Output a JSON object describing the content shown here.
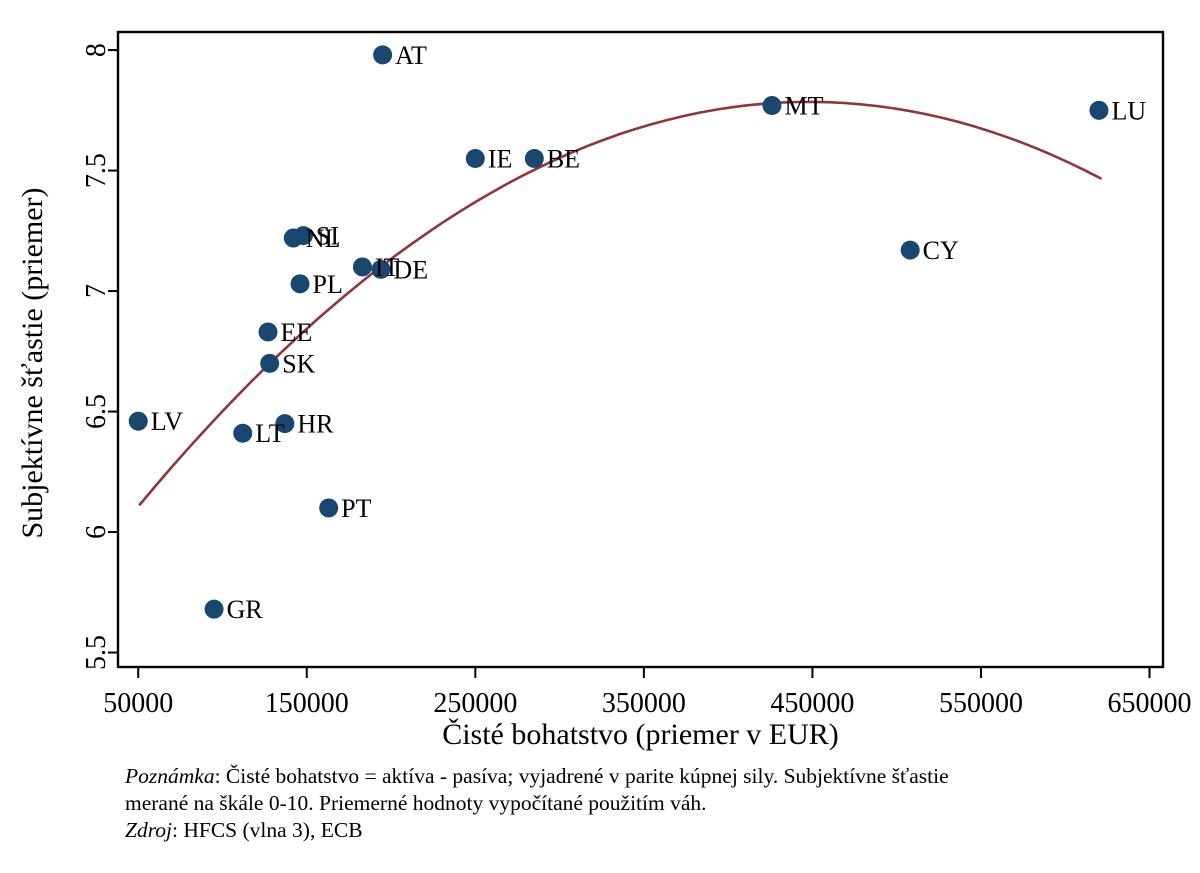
{
  "chart_data": {
    "type": "scatter",
    "xlabel": "Čisté bohatstvo (priemer v EUR)",
    "ylabel": "Subjektívne šťastie (priemer)",
    "xlim": [
      38000,
      658000
    ],
    "ylim": [
      5.44,
      8.075
    ],
    "xticks": [
      50000,
      150000,
      250000,
      350000,
      450000,
      550000,
      650000
    ],
    "yticks": [
      5.5,
      6,
      6.5,
      7,
      7.5,
      8
    ],
    "grid": false,
    "point_color": "#1a476f",
    "axis_color": "#000000",
    "points": [
      {
        "label": "LV",
        "x": 50000,
        "y": 6.46
      },
      {
        "label": "GR",
        "x": 95000,
        "y": 5.68
      },
      {
        "label": "LT",
        "x": 112000,
        "y": 6.41
      },
      {
        "label": "EE",
        "x": 127000,
        "y": 6.83
      },
      {
        "label": "SK",
        "x": 128000,
        "y": 6.7
      },
      {
        "label": "HR",
        "x": 137000,
        "y": 6.45
      },
      {
        "label": "NL",
        "x": 142000,
        "y": 7.22
      },
      {
        "label": "PL",
        "x": 146000,
        "y": 7.03
      },
      {
        "label": "SI",
        "x": 148000,
        "y": 7.23
      },
      {
        "label": "PT",
        "x": 163000,
        "y": 6.1
      },
      {
        "label": "IT",
        "x": 183000,
        "y": 7.1
      },
      {
        "label": "DE",
        "x": 194000,
        "y": 7.09
      },
      {
        "label": "AT",
        "x": 195000,
        "y": 7.98
      },
      {
        "label": "IE",
        "x": 250000,
        "y": 7.55
      },
      {
        "label": "BE",
        "x": 285000,
        "y": 7.55
      },
      {
        "label": "MT",
        "x": 426000,
        "y": 7.77
      },
      {
        "label": "CY",
        "x": 508000,
        "y": 7.17
      },
      {
        "label": "LU",
        "x": 620000,
        "y": 7.75
      }
    ],
    "fit_curve": {
      "type": "quadratic",
      "peak_x": 448000,
      "peak_y": 7.785,
      "a": -1.06e-11,
      "x_start": 51000,
      "x_end": 621000,
      "color": "#90353b"
    }
  },
  "notes": {
    "line1_label": "Poznámka",
    "line1_text": ": Čisté bohatstvo = aktíva - pasíva; vyjadrené v parite kúpnej sily. Subjektívne šťastie",
    "line2_text": "merané na škále 0-10. Priemerné hodnoty vypočítané použitím váh.",
    "line3_label": "Zdroj",
    "line3_text": ": HFCS (vlna 3), ECB"
  }
}
